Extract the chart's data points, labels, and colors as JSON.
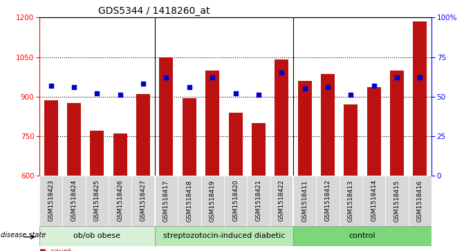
{
  "title": "GDS5344 / 1418260_at",
  "samples": [
    "GSM1518423",
    "GSM1518424",
    "GSM1518425",
    "GSM1518426",
    "GSM1518427",
    "GSM1518417",
    "GSM1518418",
    "GSM1518419",
    "GSM1518420",
    "GSM1518421",
    "GSM1518422",
    "GSM1518411",
    "GSM1518412",
    "GSM1518413",
    "GSM1518414",
    "GSM1518415",
    "GSM1518416"
  ],
  "counts": [
    885,
    875,
    770,
    760,
    910,
    1050,
    895,
    1000,
    840,
    800,
    1040,
    960,
    985,
    870,
    935,
    1000,
    1185
  ],
  "percentiles": [
    57,
    56,
    52,
    51,
    58,
    62,
    56,
    62,
    52,
    51,
    65,
    55,
    56,
    51,
    57,
    62,
    62
  ],
  "groups": [
    {
      "label": "ob/ob obese",
      "start": 0,
      "end": 5
    },
    {
      "label": "streptozotocin-induced diabetic",
      "start": 5,
      "end": 11
    },
    {
      "label": "control",
      "start": 11,
      "end": 17
    }
  ],
  "group_colors": [
    "#d8f0d8",
    "#b8e8b8",
    "#7ad87a"
  ],
  "bar_color": "#bb1111",
  "percentile_color": "#0000cc",
  "ylim_left": [
    600,
    1200
  ],
  "ylim_right": [
    0,
    100
  ],
  "yticks_left": [
    600,
    750,
    900,
    1050,
    1200
  ],
  "yticks_right": [
    0,
    25,
    50,
    75,
    100
  ],
  "plot_bg_color": "#ffffff",
  "xtick_bg_color": "#d8d8d8",
  "title_fontsize": 10,
  "tick_fontsize": 6.5,
  "group_label_fontsize": 8
}
